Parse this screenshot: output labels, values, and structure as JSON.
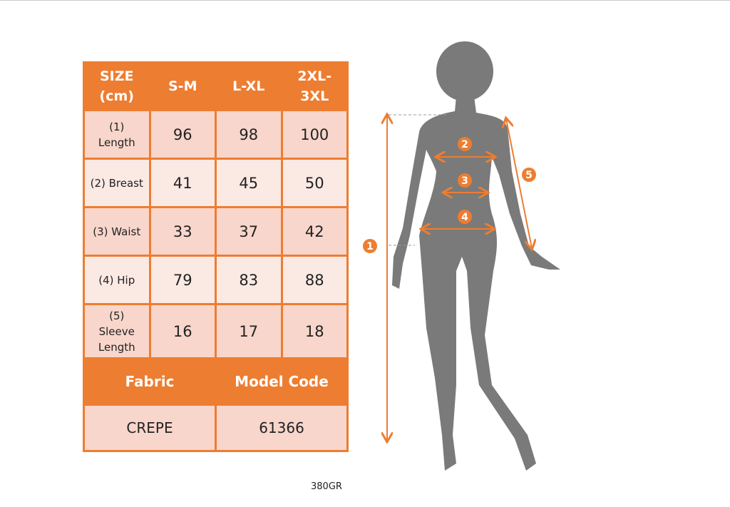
{
  "table": {
    "headers": [
      "SIZE\n(cm)",
      "S-M",
      "L-XL",
      "2XL-\n3XL"
    ],
    "rows": [
      {
        "label": "(1)\nLength",
        "values": [
          "96",
          "98",
          "100"
        ]
      },
      {
        "label": "(2) Breast",
        "values": [
          "41",
          "45",
          "50"
        ]
      },
      {
        "label": "(3) Waist",
        "values": [
          "33",
          "37",
          "42"
        ]
      },
      {
        "label": "(4) Hip",
        "values": [
          "79",
          "83",
          "88"
        ]
      },
      {
        "label": "(5)\nSleeve\nLength",
        "values": [
          "16",
          "17",
          "18"
        ]
      }
    ],
    "fabric_label": "Fabric",
    "model_code_label": "Model Code",
    "fabric": "CREPE",
    "model_code": "61366"
  },
  "footer": "380GR",
  "figure": {
    "markers": [
      "1",
      "2",
      "3",
      "4",
      "5"
    ]
  },
  "colors": {
    "accent": "#ed7d31",
    "row_dark": "#f8d6cb",
    "row_light": "#fbe9e4",
    "silhouette": "#7a7a7a"
  }
}
